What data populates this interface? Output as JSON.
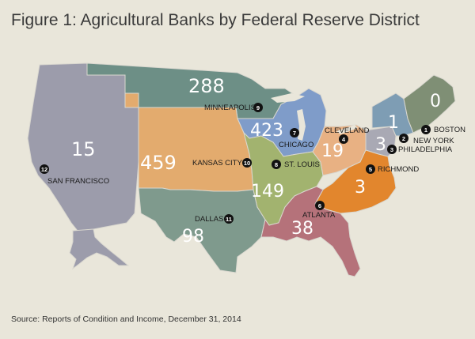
{
  "title": "Figure 1: Agricultural Banks by Federal Reserve District",
  "source": "Source: Reports of Condition and Income, December 31, 2014",
  "districts": [
    {
      "number": "1",
      "city": "BOSTON",
      "count": "0",
      "color": "#7f8f75"
    },
    {
      "number": "2",
      "city": "NEW YORK",
      "count": "1",
      "color": "#7e9db4"
    },
    {
      "number": "3",
      "city": "PHILADELPHIA",
      "count": "3",
      "color": "#a9a9b4"
    },
    {
      "number": "4",
      "city": "CLEVELAND",
      "count": "19",
      "color": "#e8b183"
    },
    {
      "number": "5",
      "city": "RICHMOND",
      "count": "3",
      "color": "#e2862d"
    },
    {
      "number": "6",
      "city": "ATLANTA",
      "count": "38",
      "color": "#b5727a"
    },
    {
      "number": "7",
      "city": "CHICAGO",
      "count": "423",
      "color": "#7f9cc9"
    },
    {
      "number": "8",
      "city": "ST. LOUIS",
      "count": "149",
      "color": "#a2b36f"
    },
    {
      "number": "9",
      "city": "MINNEAPOLIS",
      "count": "288",
      "color": "#6d8f86"
    },
    {
      "number": "10",
      "city": "KANSAS CITY",
      "count": "459",
      "color": "#e3ab6e"
    },
    {
      "number": "11",
      "city": "DALLAS",
      "count": "98",
      "color": "#7f9a8d"
    },
    {
      "number": "12",
      "city": "SAN FRANCISCO",
      "count": "15",
      "color": "#9c9cab"
    }
  ]
}
